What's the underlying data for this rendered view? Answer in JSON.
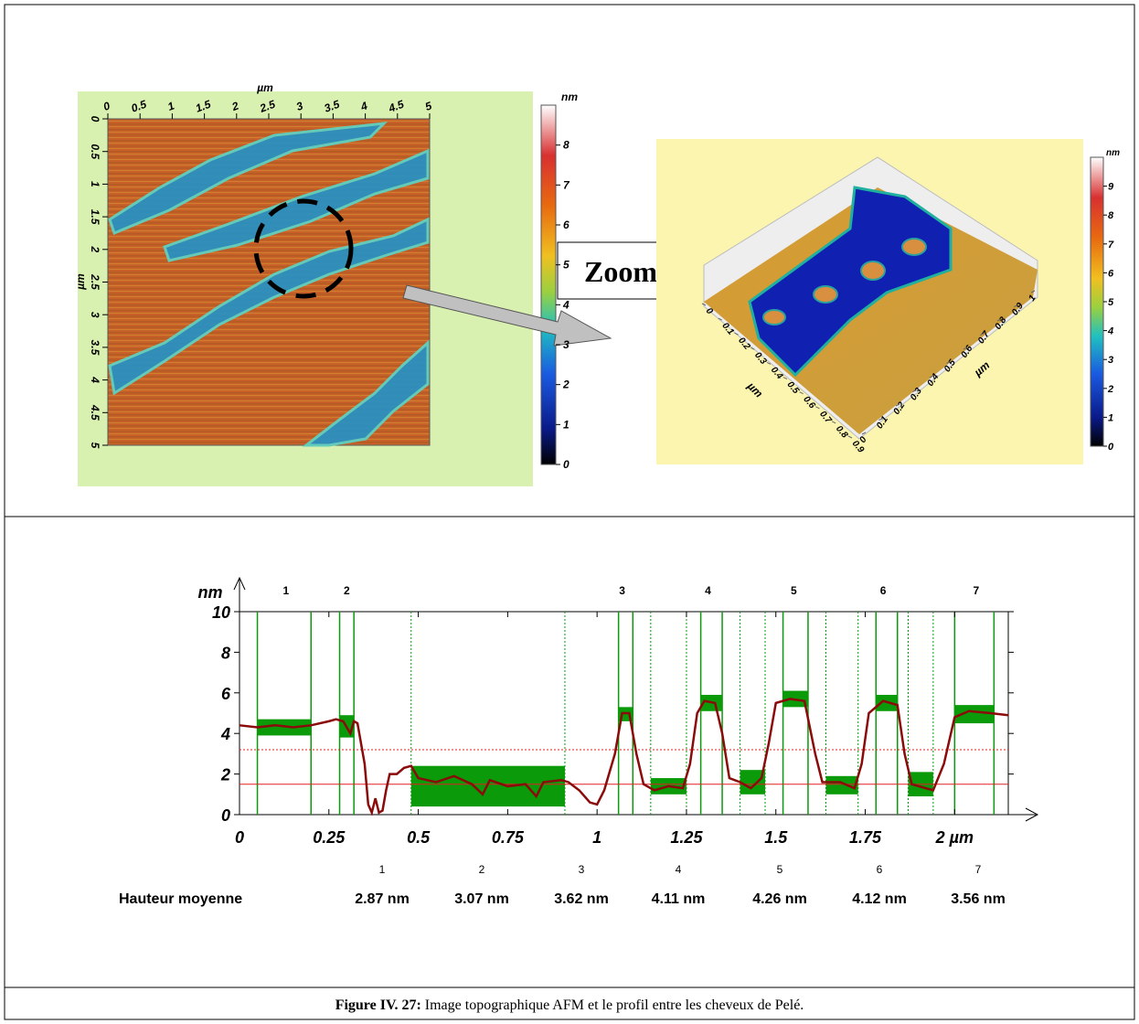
{
  "afm_image": {
    "x_label": "µm",
    "y_label": "µm",
    "ticks": [
      0,
      0.5,
      1,
      1.5,
      2,
      2.5,
      3,
      3.5,
      4,
      4.5,
      5
    ],
    "colorbar_label": "nm",
    "colorbar_ticks": [
      0,
      1,
      2,
      3,
      4,
      5,
      6,
      7,
      8
    ],
    "zoom_label": "Zoom"
  },
  "afm_3d": {
    "axis_label_left": "µm",
    "axis_label_right": "µm",
    "ticks_left": [
      0,
      0.1,
      0.2,
      0.3,
      0.4,
      0.5,
      0.6,
      0.7,
      0.8,
      0.9
    ],
    "ticks_right": [
      0,
      0.1,
      0.2,
      0.3,
      0.4,
      0.5,
      0.6,
      0.7,
      0.8,
      0.9,
      1
    ],
    "colorbar_label": "nm",
    "colorbar_ticks": [
      0,
      1,
      2,
      3,
      4,
      5,
      6,
      7,
      8,
      9
    ]
  },
  "chart_data": {
    "type": "line",
    "y_label": "nm",
    "x": [
      0,
      0.05,
      0.1,
      0.15,
      0.2,
      0.25,
      0.27,
      0.29,
      0.31,
      0.32,
      0.33,
      0.35,
      0.36,
      0.37,
      0.38,
      0.39,
      0.4,
      0.41,
      0.42,
      0.44,
      0.46,
      0.48,
      0.5,
      0.55,
      0.6,
      0.65,
      0.68,
      0.7,
      0.75,
      0.8,
      0.83,
      0.85,
      0.9,
      0.92,
      0.95,
      0.98,
      1.0,
      1.02,
      1.05,
      1.07,
      1.09,
      1.11,
      1.13,
      1.16,
      1.2,
      1.24,
      1.26,
      1.28,
      1.3,
      1.33,
      1.35,
      1.37,
      1.4,
      1.43,
      1.46,
      1.48,
      1.5,
      1.54,
      1.58,
      1.61,
      1.63,
      1.68,
      1.72,
      1.74,
      1.76,
      1.8,
      1.84,
      1.86,
      1.88,
      1.92,
      1.94,
      1.97,
      2.0,
      2.04,
      2.1,
      2.15
    ],
    "series": [
      {
        "color": "#8b0a0a",
        "values": [
          4.4,
          4.3,
          4.4,
          4.3,
          4.4,
          4.6,
          4.7,
          4.6,
          4.0,
          4.6,
          4.5,
          2.5,
          0.5,
          0.1,
          0.8,
          0.1,
          0.2,
          1.2,
          2.0,
          2.0,
          2.3,
          2.4,
          1.8,
          1.6,
          1.9,
          1.5,
          1.0,
          1.7,
          1.4,
          1.5,
          0.9,
          1.6,
          1.7,
          1.6,
          1.2,
          0.6,
          0.5,
          1.2,
          3.0,
          5.0,
          5.0,
          3.0,
          1.5,
          1.2,
          1.4,
          1.3,
          2.5,
          5.0,
          5.6,
          5.5,
          4.0,
          1.8,
          1.6,
          1.3,
          1.8,
          3.5,
          5.5,
          5.7,
          5.6,
          3.0,
          1.6,
          1.6,
          1.3,
          2.5,
          5.0,
          5.6,
          5.4,
          3.0,
          1.5,
          1.3,
          1.2,
          2.5,
          4.8,
          5.1,
          5.0,
          4.9
        ]
      }
    ],
    "regions": [
      [
        0.05,
        0.2,
        3.9,
        4.7
      ],
      [
        0.28,
        0.32,
        3.8,
        4.9
      ],
      [
        0.48,
        0.91,
        0.4,
        2.4
      ],
      [
        1.06,
        1.1,
        4.6,
        5.3
      ],
      [
        1.15,
        1.25,
        1.0,
        1.8
      ],
      [
        1.29,
        1.35,
        5.1,
        5.9
      ],
      [
        1.4,
        1.47,
        1.0,
        2.2
      ],
      [
        1.52,
        1.59,
        5.3,
        6.1
      ],
      [
        1.64,
        1.73,
        1.0,
        1.9
      ],
      [
        1.78,
        1.84,
        5.1,
        5.9
      ],
      [
        1.87,
        1.94,
        0.9,
        2.1
      ],
      [
        2.0,
        2.11,
        4.5,
        5.4
      ]
    ],
    "region_color": "#0a9a0a",
    "reference_lines": [
      {
        "value": 1.5,
        "style": "solid"
      },
      {
        "value": 3.2,
        "style": "dotted"
      }
    ],
    "reference_color": "#e02020",
    "top_labels": [
      {
        "x": 0.13,
        "label": "1"
      },
      {
        "x": 0.3,
        "label": "2"
      },
      {
        "x": 1.07,
        "label": "3"
      },
      {
        "x": 1.31,
        "label": "4"
      },
      {
        "x": 1.55,
        "label": "5"
      },
      {
        "x": 1.8,
        "label": "6"
      },
      {
        "x": 2.06,
        "label": "7"
      }
    ],
    "xlim": [
      0,
      2.15
    ],
    "ylim": [
      0,
      10
    ],
    "xticks": [
      0,
      0.25,
      0.5,
      0.75,
      1,
      1.25,
      1.5,
      1.75,
      {
        "value": 2,
        "label": "2 µm"
      }
    ],
    "yticks": [
      0,
      2,
      4,
      6,
      8,
      10
    ]
  },
  "mean_heights": {
    "label": "Hauteur moyenne",
    "columns": [
      "1",
      "2",
      "3",
      "4",
      "5",
      "6",
      "7"
    ],
    "values": [
      "2.87 nm",
      "3.07 nm",
      "3.62 nm",
      "4.11 nm",
      "4.26 nm",
      "4.12 nm",
      "3.56 nm"
    ]
  },
  "caption": {
    "label": "Figure IV. 27:",
    "text": " Image topographique AFM et le profil entre les cheveux de Pelé."
  }
}
